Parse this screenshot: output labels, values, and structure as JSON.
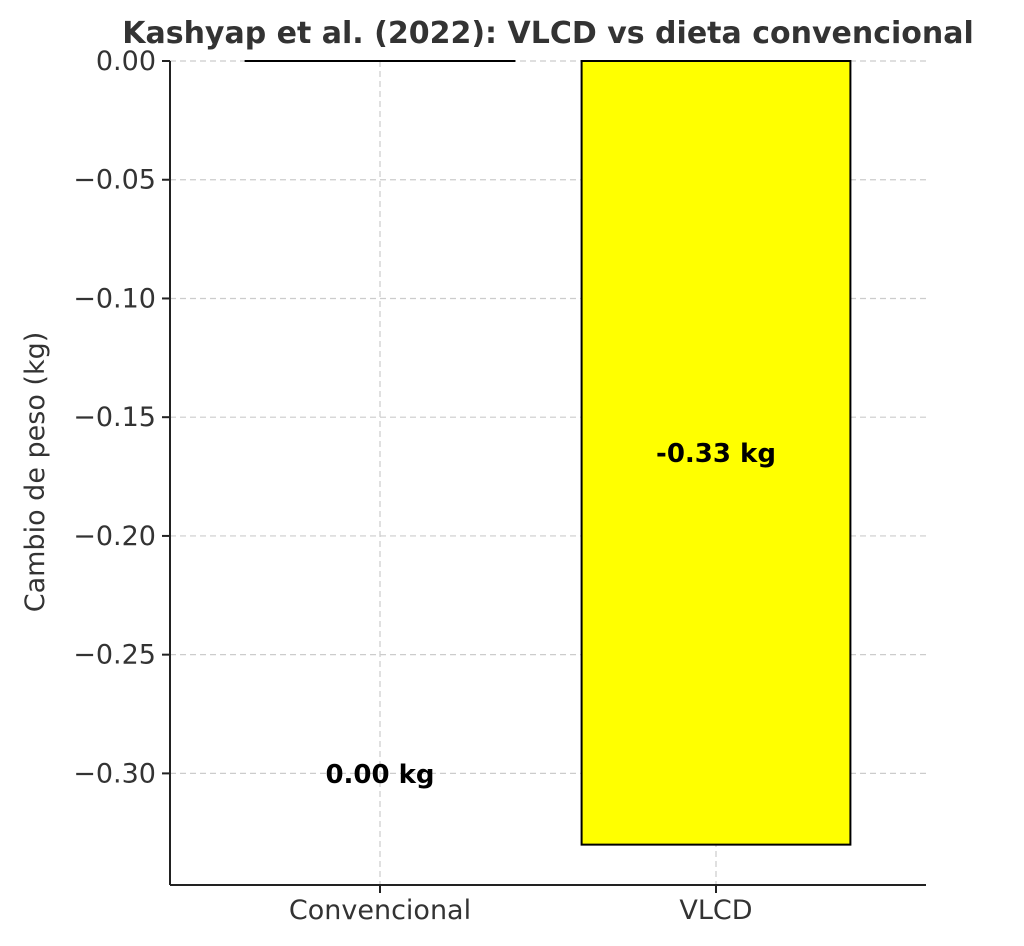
{
  "chart_data": {
    "type": "bar",
    "title": "Kashyap et al. (2022): VLCD vs dieta convencional",
    "xlabel": "",
    "ylabel": "Cambio de peso (kg)",
    "categories": [
      "Convencional",
      "VLCD"
    ],
    "values": [
      0.0,
      -0.33
    ],
    "data_labels": [
      "0.00 kg",
      "-0.33 kg"
    ],
    "colors": [
      "#ffffff",
      "#ffff00"
    ],
    "edge_color": "#000000",
    "ylim": [
      -0.347,
      0.0
    ],
    "yticks": [
      0.0,
      -0.05,
      -0.1,
      -0.15,
      -0.2,
      -0.25,
      -0.3
    ],
    "ytick_labels": [
      "0.00",
      "−0.05",
      "−0.10",
      "−0.15",
      "−0.20",
      "−0.25",
      "−0.30"
    ],
    "grid": true,
    "legend": "none"
  }
}
